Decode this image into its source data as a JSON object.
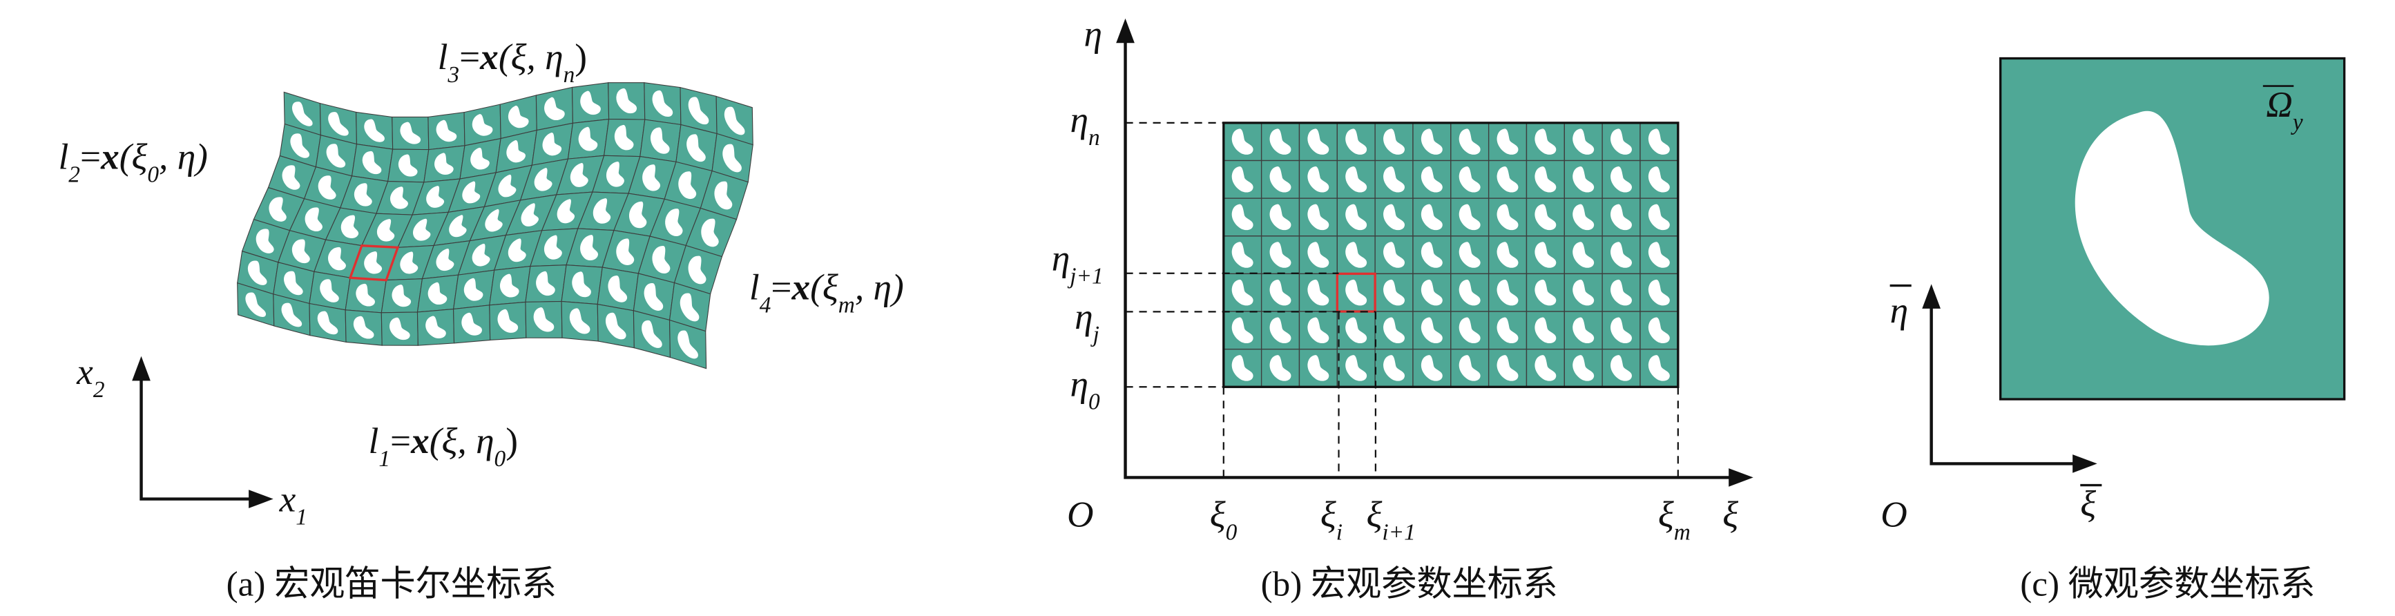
{
  "panel_a": {
    "caption": "(a) 宏观笛卡尔坐标系",
    "l3": [
      "l",
      "3",
      "=",
      "x",
      "(ξ, η",
      "n",
      ")"
    ],
    "l2": [
      "l",
      "2",
      "=",
      "x",
      "(ξ",
      "0",
      ", η)"
    ],
    "l4": [
      "l",
      "4",
      "=",
      "x",
      "(ξ",
      "m",
      ", η)"
    ],
    "l1": [
      "l",
      "1",
      "=",
      "x",
      "(ξ, η",
      "0",
      ")"
    ],
    "x1": [
      "x",
      "1"
    ],
    "x2": [
      "x",
      "2"
    ]
  },
  "panel_b": {
    "caption": "(b) 宏观参数坐标系",
    "eta": "η",
    "xi": "ξ",
    "origin": "O",
    "eta_n": [
      "η",
      "n"
    ],
    "eta_j1": [
      "η",
      "j+1"
    ],
    "eta_j": [
      "η",
      "j"
    ],
    "eta_0": [
      "η",
      "0"
    ],
    "xi_0": [
      "ξ",
      "0"
    ],
    "xi_i": [
      "ξ",
      "i"
    ],
    "xi_i1": [
      "ξ",
      "i+1"
    ],
    "xi_m": [
      "ξ",
      "m"
    ]
  },
  "panel_c": {
    "caption": "(c) 微观参数坐标系",
    "eta": "η",
    "xi": "ξ",
    "origin": "O",
    "omega": [
      "Ω",
      "y"
    ]
  }
}
